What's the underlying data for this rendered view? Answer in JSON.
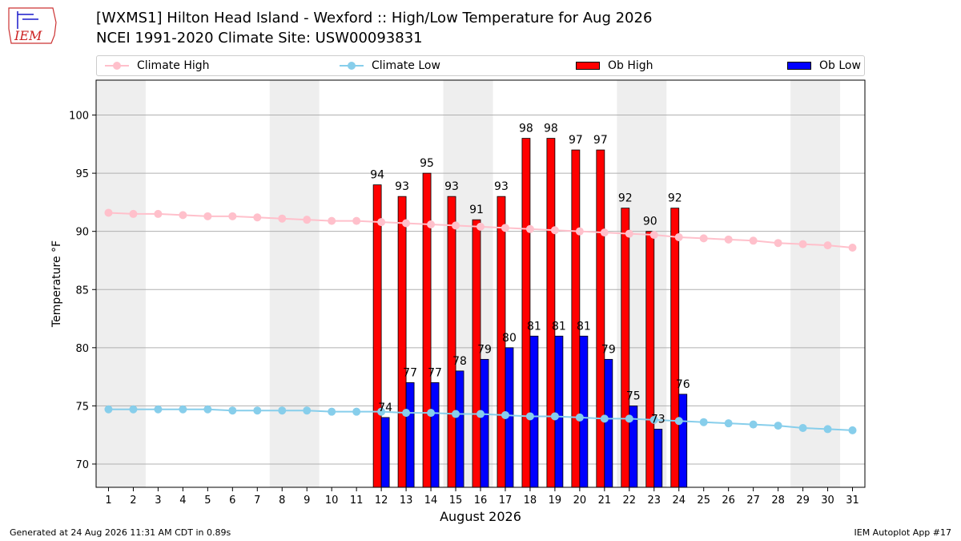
{
  "header": {
    "logo_text": "IEM",
    "title": "[WXMS1] Hilton Head Island - Wexford :: High/Low Temperature for Aug 2026",
    "subtitle": "NCEI 1991-2020 Climate Site: USW00093831"
  },
  "legend": {
    "climate_high": "Climate High",
    "climate_low": "Climate Low",
    "ob_high": "Ob High",
    "ob_low": "Ob Low"
  },
  "colors": {
    "climate_high": "#ffc0cb",
    "climate_low": "#87ceeb",
    "ob_high": "#ff0000",
    "ob_low": "#0000ff",
    "weekend_band": "#eeeeee",
    "grid": "#b0b0b0"
  },
  "footer": {
    "left": "Generated at 24 Aug 2026 11:31 AM CDT in 0.89s",
    "right": "IEM Autoplot App #17"
  },
  "chart_data": {
    "type": "bar",
    "xlabel": "August 2026",
    "ylabel": "Temperature °F",
    "xlim": [
      0.5,
      31.5
    ],
    "ylim": [
      68,
      103
    ],
    "yticks": [
      70,
      75,
      80,
      85,
      90,
      95,
      100
    ],
    "days": [
      1,
      2,
      3,
      4,
      5,
      6,
      7,
      8,
      9,
      10,
      11,
      12,
      13,
      14,
      15,
      16,
      17,
      18,
      19,
      20,
      21,
      22,
      23,
      24,
      25,
      26,
      27,
      28,
      29,
      30,
      31
    ],
    "shaded_days": [
      [
        1,
        2
      ],
      [
        8,
        9
      ],
      [
        15,
        16
      ],
      [
        22,
        23
      ],
      [
        29,
        30
      ]
    ],
    "grid": true,
    "legend_position": "top",
    "climate_high": [
      91.6,
      91.5,
      91.5,
      91.4,
      91.3,
      91.3,
      91.2,
      91.1,
      91.0,
      90.9,
      90.9,
      90.8,
      90.7,
      90.6,
      90.5,
      90.4,
      90.3,
      90.2,
      90.1,
      90.0,
      89.9,
      89.8,
      89.7,
      89.5,
      89.4,
      89.3,
      89.2,
      89.0,
      88.9,
      88.8,
      88.6
    ],
    "climate_low": [
      74.7,
      74.7,
      74.7,
      74.7,
      74.7,
      74.6,
      74.6,
      74.6,
      74.6,
      74.5,
      74.5,
      74.5,
      74.4,
      74.4,
      74.3,
      74.3,
      74.2,
      74.1,
      74.1,
      74.0,
      73.9,
      73.9,
      73.8,
      73.7,
      73.6,
      73.5,
      73.4,
      73.3,
      73.1,
      73.0,
      72.9
    ],
    "ob_days": [
      12,
      13,
      14,
      15,
      16,
      17,
      18,
      19,
      20,
      21,
      22,
      23,
      24
    ],
    "ob_high": [
      94,
      93,
      95,
      93,
      91,
      93,
      98,
      98,
      97,
      97,
      92,
      90,
      92
    ],
    "ob_low": [
      74,
      77,
      77,
      78,
      79,
      80,
      81,
      81,
      81,
      79,
      75,
      73,
      76
    ]
  }
}
